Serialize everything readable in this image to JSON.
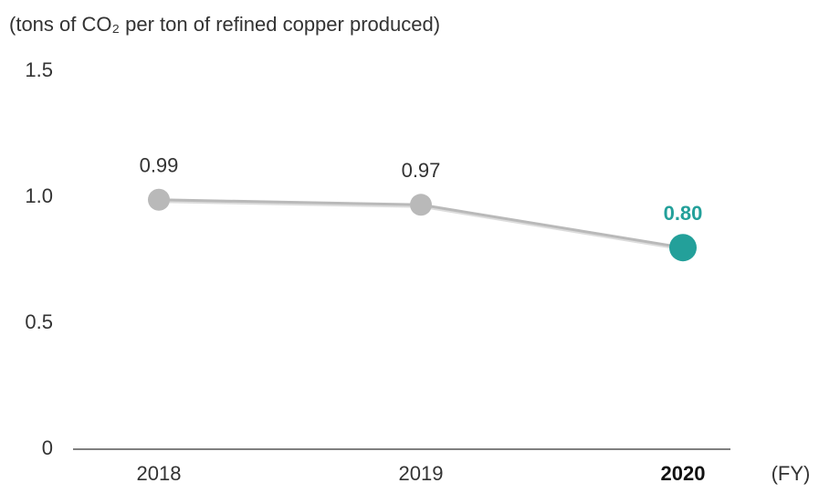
{
  "chart_data": {
    "type": "line",
    "y_label": "(tons of CO₂ per ton of refined copper produced)",
    "x_label": "(FY)",
    "categories": [
      "2018",
      "2019",
      "2020"
    ],
    "series": [
      {
        "color": "#b9b9b9",
        "values": [
          0.99,
          0.97,
          0.8
        ],
        "value_labels": [
          "0.99",
          "0.97",
          "0.80"
        ],
        "point_colors": [
          "#b9b9b9",
          "#b9b9b9",
          "#23a09a"
        ]
      }
    ],
    "ylim": [
      0,
      1.5
    ],
    "yticks": [
      0,
      0.5,
      {
        "value": 1,
        "label": "1.0"
      },
      1.5
    ],
    "grid": false
  }
}
